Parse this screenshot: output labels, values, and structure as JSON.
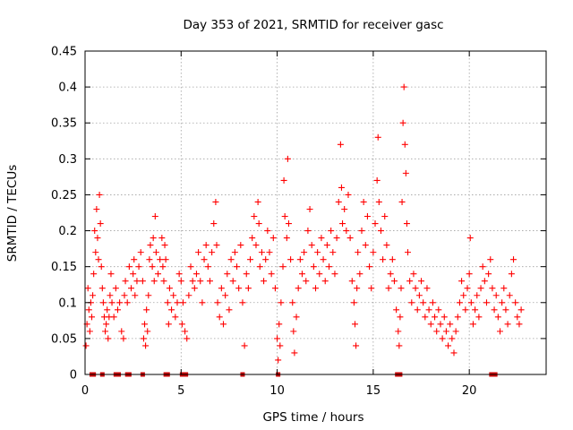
{
  "chart_data": {
    "type": "scatter",
    "title": "Day 353 of 2021, SRMTID for receiver gasc",
    "xlabel": "GPS time / hours",
    "ylabel": "SRMTID / TECUs",
    "xlim": [
      0,
      24
    ],
    "ylim": [
      0,
      0.45
    ],
    "xticks": [
      0,
      5,
      10,
      15,
      20
    ],
    "xtick_labels": [
      "0",
      "5",
      "10",
      "15",
      "20"
    ],
    "yticks": [
      0,
      0.05,
      0.1,
      0.15,
      0.2,
      0.25,
      0.3,
      0.35,
      0.4,
      0.45
    ],
    "ytick_labels": [
      "0",
      "0.05",
      "0.1",
      "0.15",
      "0.2",
      "0.25",
      "0.3",
      "0.35",
      "0.4",
      "0.45"
    ],
    "grid": true,
    "marker": "+",
    "color": "#ff0000",
    "zero_marker_color": "#cc0000",
    "series": [
      {
        "name": "SRMTID",
        "points": [
          [
            0.05,
            0.04
          ],
          [
            0.1,
            0.07
          ],
          [
            0.15,
            0.12
          ],
          [
            0.2,
            0.09
          ],
          [
            0.25,
            0.06
          ],
          [
            0.3,
            0.1
          ],
          [
            0.35,
            0.08
          ],
          [
            0.4,
            0.11
          ],
          [
            0.45,
            0.14
          ],
          [
            0.5,
            0.2
          ],
          [
            0.55,
            0.17
          ],
          [
            0.6,
            0.23
          ],
          [
            0.65,
            0.19
          ],
          [
            0.7,
            0.16
          ],
          [
            0.75,
            0.25
          ],
          [
            0.8,
            0.21
          ],
          [
            0.85,
            0.15
          ],
          [
            0.9,
            0.12
          ],
          [
            0.95,
            0.1
          ],
          [
            1.0,
            0.08
          ],
          [
            1.05,
            0.06
          ],
          [
            1.1,
            0.07
          ],
          [
            1.15,
            0.09
          ],
          [
            1.2,
            0.05
          ],
          [
            1.25,
            0.08
          ],
          [
            1.3,
            0.11
          ],
          [
            1.35,
            0.14
          ],
          [
            1.4,
            0.1
          ],
          [
            1.5,
            0.08
          ],
          [
            1.6,
            0.12
          ],
          [
            1.7,
            0.09
          ],
          [
            1.8,
            0.1
          ],
          [
            1.9,
            0.06
          ],
          [
            2.0,
            0.05
          ],
          [
            2.05,
            0.11
          ],
          [
            2.1,
            0.13
          ],
          [
            2.2,
            0.1
          ],
          [
            2.3,
            0.15
          ],
          [
            2.4,
            0.12
          ],
          [
            2.5,
            0.14
          ],
          [
            2.55,
            0.16
          ],
          [
            2.6,
            0.11
          ],
          [
            2.7,
            0.13
          ],
          [
            2.8,
            0.15
          ],
          [
            2.9,
            0.17
          ],
          [
            3.0,
            0.13
          ],
          [
            3.05,
            0.05
          ],
          [
            3.1,
            0.07
          ],
          [
            3.15,
            0.04
          ],
          [
            3.2,
            0.09
          ],
          [
            3.25,
            0.06
          ],
          [
            3.3,
            0.11
          ],
          [
            3.35,
            0.16
          ],
          [
            3.4,
            0.18
          ],
          [
            3.5,
            0.15
          ],
          [
            3.55,
            0.19
          ],
          [
            3.6,
            0.13
          ],
          [
            3.65,
            0.22
          ],
          [
            3.7,
            0.17
          ],
          [
            3.8,
            0.14
          ],
          [
            3.9,
            0.16
          ],
          [
            4.0,
            0.19
          ],
          [
            4.05,
            0.15
          ],
          [
            4.1,
            0.13
          ],
          [
            4.15,
            0.18
          ],
          [
            4.2,
            0.16
          ],
          [
            4.3,
            0.1
          ],
          [
            4.35,
            0.07
          ],
          [
            4.4,
            0.12
          ],
          [
            4.5,
            0.09
          ],
          [
            4.6,
            0.11
          ],
          [
            4.7,
            0.08
          ],
          [
            4.8,
            0.1
          ],
          [
            4.9,
            0.14
          ],
          [
            5.0,
            0.13
          ],
          [
            5.05,
            0.07
          ],
          [
            5.1,
            0.1
          ],
          [
            5.2,
            0.06
          ],
          [
            5.3,
            0.05
          ],
          [
            5.4,
            0.11
          ],
          [
            5.5,
            0.15
          ],
          [
            5.6,
            0.13
          ],
          [
            5.7,
            0.12
          ],
          [
            5.8,
            0.14
          ],
          [
            5.9,
            0.17
          ],
          [
            6.0,
            0.13
          ],
          [
            6.1,
            0.1
          ],
          [
            6.2,
            0.16
          ],
          [
            6.3,
            0.18
          ],
          [
            6.4,
            0.15
          ],
          [
            6.5,
            0.13
          ],
          [
            6.6,
            0.17
          ],
          [
            6.7,
            0.21
          ],
          [
            6.8,
            0.24
          ],
          [
            6.85,
            0.18
          ],
          [
            6.9,
            0.1
          ],
          [
            7.0,
            0.08
          ],
          [
            7.1,
            0.12
          ],
          [
            7.2,
            0.07
          ],
          [
            7.3,
            0.11
          ],
          [
            7.4,
            0.14
          ],
          [
            7.5,
            0.09
          ],
          [
            7.6,
            0.16
          ],
          [
            7.7,
            0.13
          ],
          [
            7.8,
            0.17
          ],
          [
            7.9,
            0.15
          ],
          [
            8.0,
            0.12
          ],
          [
            8.1,
            0.18
          ],
          [
            8.2,
            0.1
          ],
          [
            8.3,
            0.04
          ],
          [
            8.4,
            0.14
          ],
          [
            8.5,
            0.12
          ],
          [
            8.6,
            0.16
          ],
          [
            8.7,
            0.19
          ],
          [
            8.8,
            0.22
          ],
          [
            8.9,
            0.18
          ],
          [
            9.0,
            0.24
          ],
          [
            9.05,
            0.21
          ],
          [
            9.1,
            0.15
          ],
          [
            9.2,
            0.17
          ],
          [
            9.3,
            0.13
          ],
          [
            9.4,
            0.16
          ],
          [
            9.5,
            0.2
          ],
          [
            9.6,
            0.17
          ],
          [
            9.7,
            0.14
          ],
          [
            9.8,
            0.19
          ],
          [
            9.9,
            0.12
          ],
          [
            10.0,
            0.05
          ],
          [
            10.05,
            0.02
          ],
          [
            10.1,
            0.07
          ],
          [
            10.15,
            0.04
          ],
          [
            10.2,
            0.1
          ],
          [
            10.3,
            0.15
          ],
          [
            10.35,
            0.27
          ],
          [
            10.4,
            0.22
          ],
          [
            10.5,
            0.19
          ],
          [
            10.55,
            0.3
          ],
          [
            10.6,
            0.21
          ],
          [
            10.7,
            0.16
          ],
          [
            10.8,
            0.1
          ],
          [
            10.85,
            0.06
          ],
          [
            10.9,
            0.03
          ],
          [
            11.0,
            0.08
          ],
          [
            11.1,
            0.12
          ],
          [
            11.2,
            0.16
          ],
          [
            11.3,
            0.14
          ],
          [
            11.4,
            0.17
          ],
          [
            11.5,
            0.13
          ],
          [
            11.6,
            0.2
          ],
          [
            11.7,
            0.23
          ],
          [
            11.8,
            0.18
          ],
          [
            11.9,
            0.15
          ],
          [
            12.0,
            0.12
          ],
          [
            12.1,
            0.17
          ],
          [
            12.2,
            0.14
          ],
          [
            12.3,
            0.19
          ],
          [
            12.4,
            0.16
          ],
          [
            12.5,
            0.13
          ],
          [
            12.6,
            0.18
          ],
          [
            12.7,
            0.15
          ],
          [
            12.8,
            0.2
          ],
          [
            12.9,
            0.17
          ],
          [
            13.0,
            0.14
          ],
          [
            13.1,
            0.19
          ],
          [
            13.2,
            0.24
          ],
          [
            13.3,
            0.32
          ],
          [
            13.35,
            0.26
          ],
          [
            13.4,
            0.21
          ],
          [
            13.5,
            0.23
          ],
          [
            13.6,
            0.2
          ],
          [
            13.7,
            0.25
          ],
          [
            13.8,
            0.19
          ],
          [
            13.9,
            0.13
          ],
          [
            14.0,
            0.1
          ],
          [
            14.05,
            0.07
          ],
          [
            14.1,
            0.04
          ],
          [
            14.15,
            0.12
          ],
          [
            14.2,
            0.17
          ],
          [
            14.3,
            0.14
          ],
          [
            14.4,
            0.2
          ],
          [
            14.5,
            0.24
          ],
          [
            14.6,
            0.18
          ],
          [
            14.7,
            0.22
          ],
          [
            14.8,
            0.15
          ],
          [
            14.9,
            0.12
          ],
          [
            15.0,
            0.17
          ],
          [
            15.1,
            0.21
          ],
          [
            15.2,
            0.27
          ],
          [
            15.25,
            0.33
          ],
          [
            15.3,
            0.24
          ],
          [
            15.4,
            0.2
          ],
          [
            15.5,
            0.16
          ],
          [
            15.6,
            0.22
          ],
          [
            15.7,
            0.18
          ],
          [
            15.8,
            0.12
          ],
          [
            15.9,
            0.14
          ],
          [
            16.0,
            0.16
          ],
          [
            16.1,
            0.13
          ],
          [
            16.2,
            0.09
          ],
          [
            16.3,
            0.06
          ],
          [
            16.35,
            0.04
          ],
          [
            16.4,
            0.08
          ],
          [
            16.45,
            0.12
          ],
          [
            16.5,
            0.24
          ],
          [
            16.55,
            0.35
          ],
          [
            16.6,
            0.4
          ],
          [
            16.65,
            0.32
          ],
          [
            16.7,
            0.28
          ],
          [
            16.75,
            0.21
          ],
          [
            16.8,
            0.17
          ],
          [
            16.9,
            0.13
          ],
          [
            17.0,
            0.1
          ],
          [
            17.1,
            0.14
          ],
          [
            17.2,
            0.12
          ],
          [
            17.3,
            0.09
          ],
          [
            17.4,
            0.11
          ],
          [
            17.5,
            0.13
          ],
          [
            17.6,
            0.1
          ],
          [
            17.7,
            0.08
          ],
          [
            17.8,
            0.12
          ],
          [
            17.9,
            0.09
          ],
          [
            18.0,
            0.07
          ],
          [
            18.1,
            0.1
          ],
          [
            18.2,
            0.08
          ],
          [
            18.3,
            0.06
          ],
          [
            18.4,
            0.09
          ],
          [
            18.5,
            0.07
          ],
          [
            18.6,
            0.05
          ],
          [
            18.7,
            0.08
          ],
          [
            18.8,
            0.06
          ],
          [
            18.9,
            0.04
          ],
          [
            19.0,
            0.07
          ],
          [
            19.1,
            0.05
          ],
          [
            19.2,
            0.03
          ],
          [
            19.3,
            0.06
          ],
          [
            19.4,
            0.08
          ],
          [
            19.5,
            0.1
          ],
          [
            19.6,
            0.13
          ],
          [
            19.7,
            0.11
          ],
          [
            19.8,
            0.09
          ],
          [
            19.9,
            0.12
          ],
          [
            20.0,
            0.14
          ],
          [
            20.05,
            0.19
          ],
          [
            20.1,
            0.1
          ],
          [
            20.2,
            0.07
          ],
          [
            20.3,
            0.09
          ],
          [
            20.4,
            0.11
          ],
          [
            20.5,
            0.08
          ],
          [
            20.6,
            0.12
          ],
          [
            20.7,
            0.15
          ],
          [
            20.8,
            0.13
          ],
          [
            20.9,
            0.1
          ],
          [
            21.0,
            0.14
          ],
          [
            21.1,
            0.16
          ],
          [
            21.2,
            0.12
          ],
          [
            21.3,
            0.09
          ],
          [
            21.4,
            0.11
          ],
          [
            21.5,
            0.08
          ],
          [
            21.6,
            0.06
          ],
          [
            21.7,
            0.1
          ],
          [
            21.8,
            0.12
          ],
          [
            21.9,
            0.09
          ],
          [
            22.0,
            0.07
          ],
          [
            22.1,
            0.11
          ],
          [
            22.2,
            0.14
          ],
          [
            22.3,
            0.16
          ],
          [
            22.4,
            0.1
          ],
          [
            22.5,
            0.08
          ],
          [
            22.6,
            0.07
          ],
          [
            22.7,
            0.09
          ]
        ]
      }
    ],
    "zero_points_x": [
      0.35,
      0.45,
      0.9,
      1.6,
      1.75,
      2.2,
      2.3,
      3.0,
      4.2,
      4.3,
      5.05,
      5.25,
      8.2,
      10.05,
      16.25,
      16.4,
      21.15,
      21.35
    ]
  }
}
